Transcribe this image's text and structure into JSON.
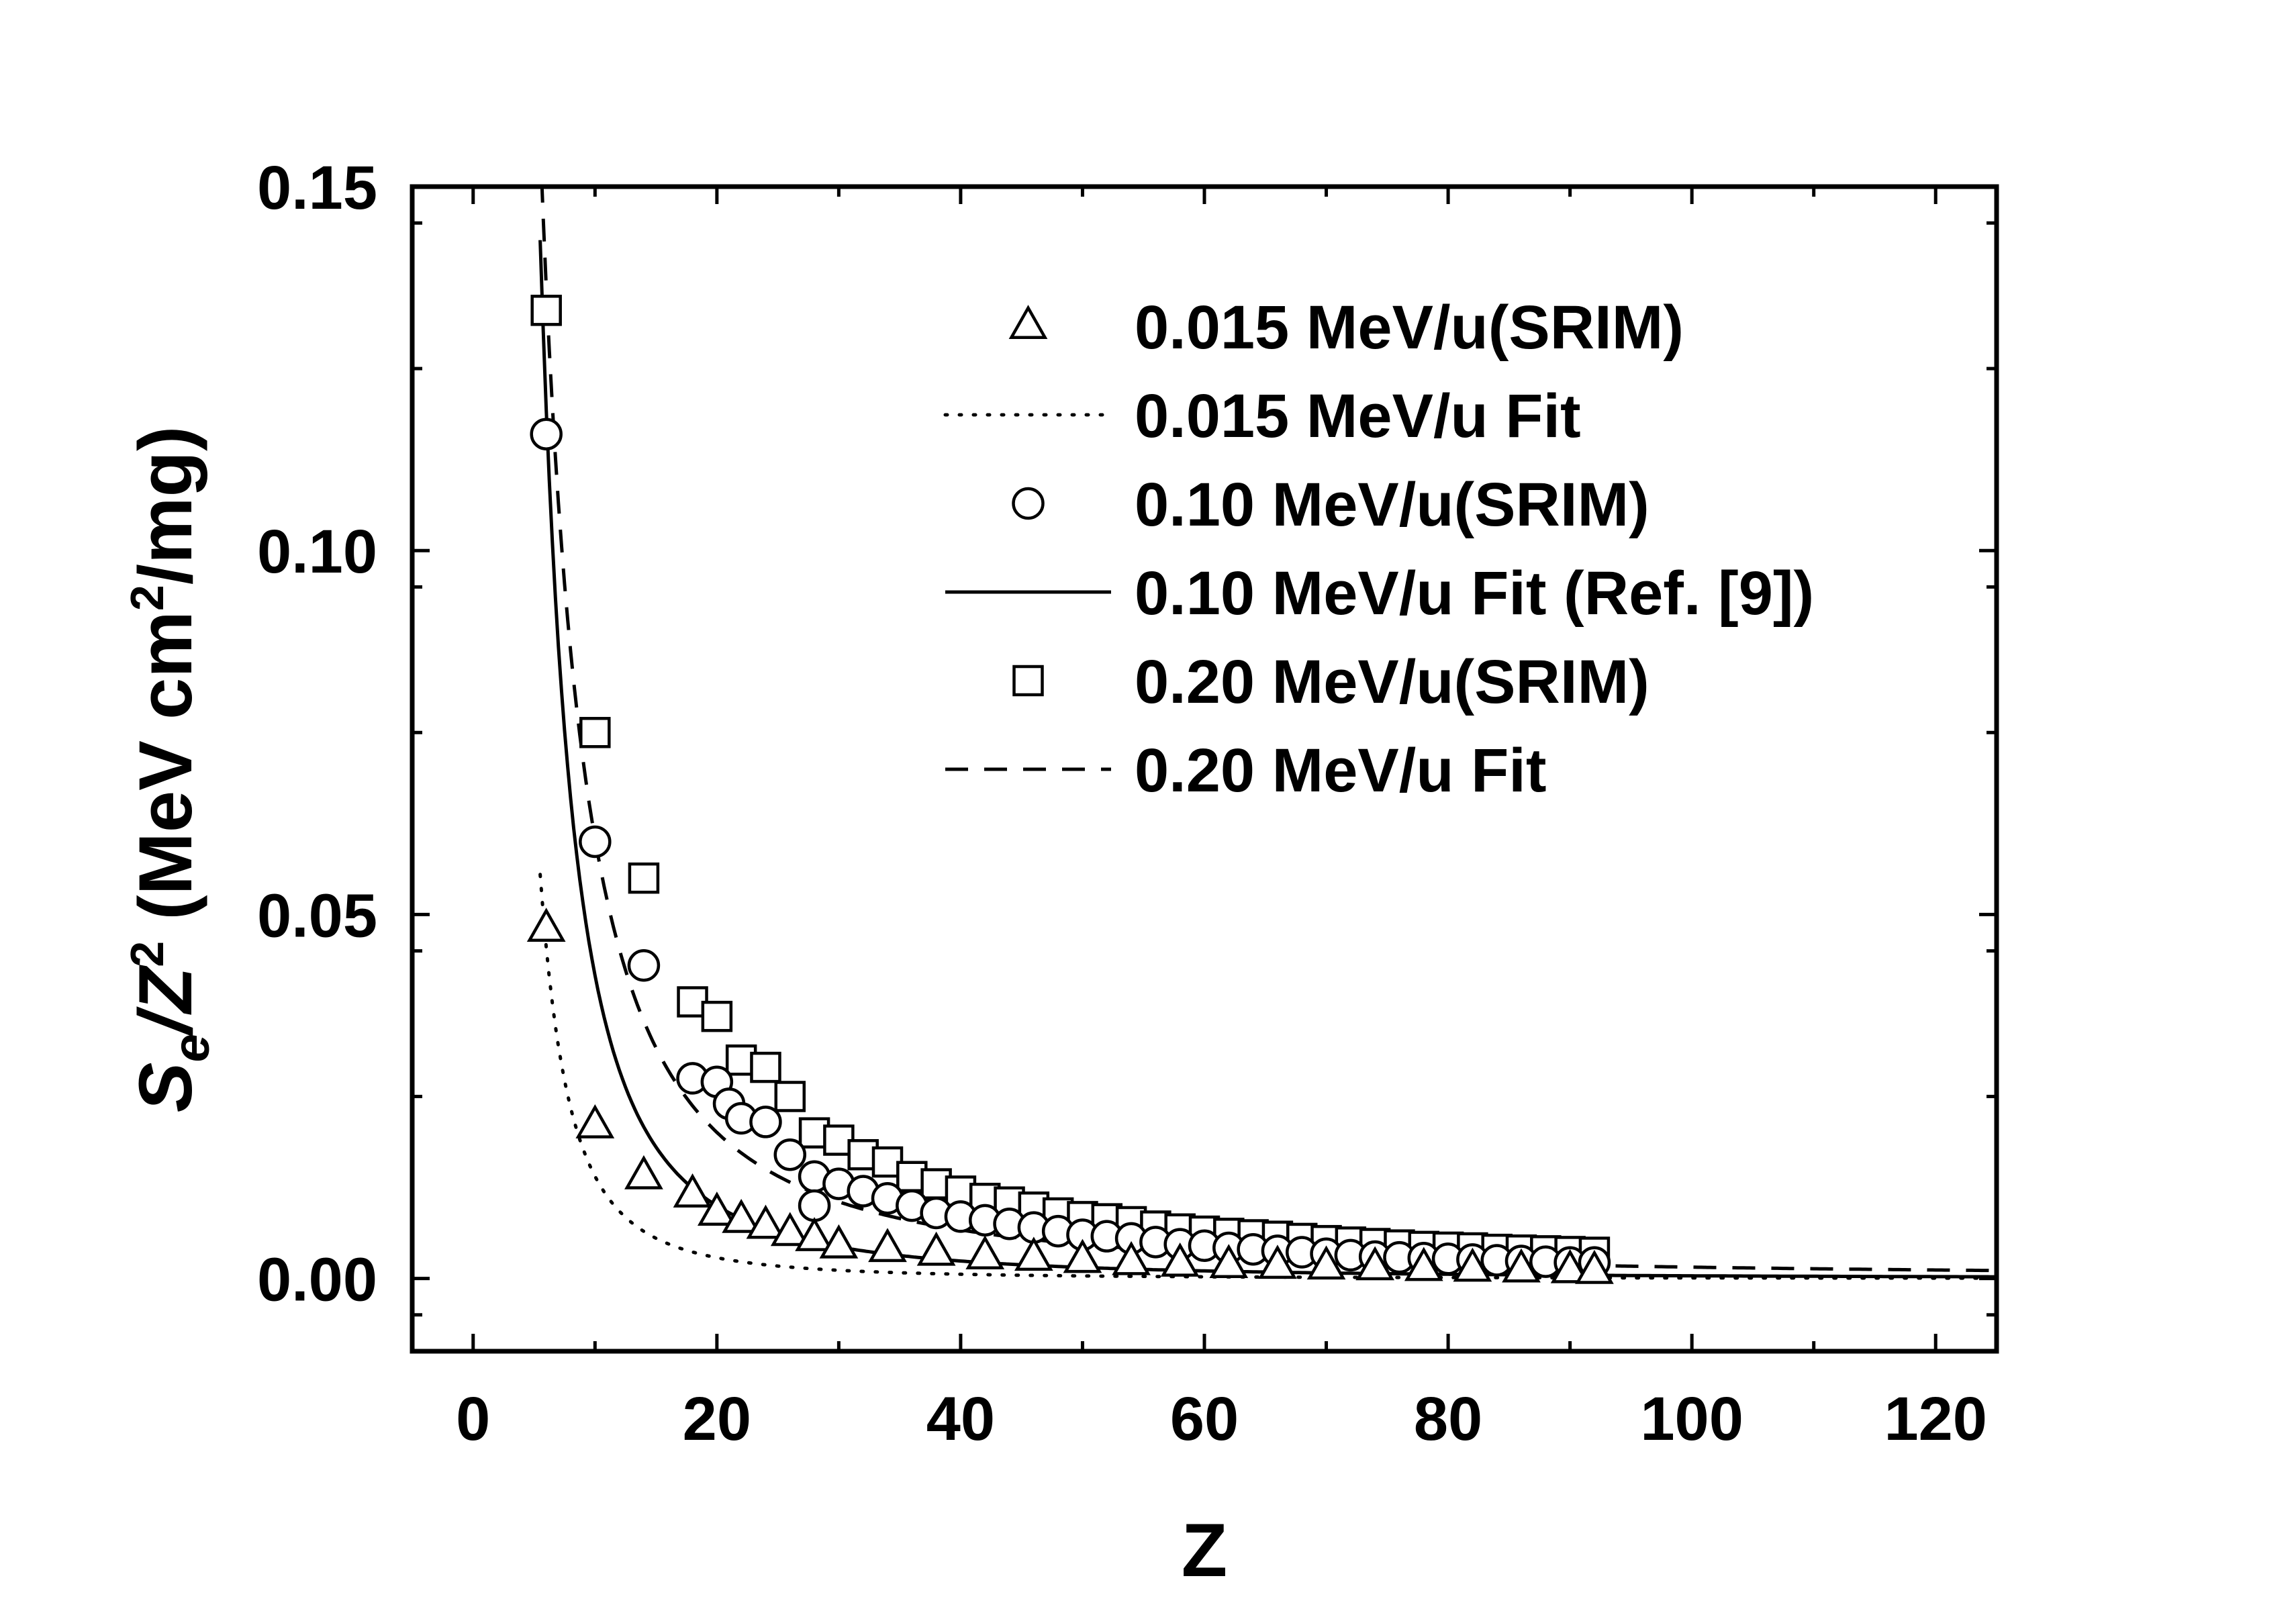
{
  "chart_data": {
    "type": "scatter",
    "title": "",
    "xlabel": "Z",
    "ylabel": {
      "main": "S",
      "subscript": "e",
      "slash_z": "/Z",
      "sup1": "2",
      "units_open": " (MeV cm",
      "sup2": "2",
      "units_close": "/mg)"
    },
    "xlim": [
      -5,
      125
    ],
    "ylim": [
      -0.01,
      0.15
    ],
    "x_ticks": [
      0,
      20,
      40,
      60,
      80,
      100,
      120
    ],
    "x_tick_labels": [
      "0",
      "20",
      "40",
      "60",
      "80",
      "100",
      "120"
    ],
    "y_ticks": [
      0.0,
      0.05,
      0.1,
      0.15
    ],
    "y_tick_labels": [
      "0.00",
      "0.05",
      "0.10",
      "0.15"
    ],
    "grid": false,
    "legend_position": "top-right",
    "series": [
      {
        "name": "0.015 MeV/u(SRIM)",
        "kind": "markers",
        "marker": "triangle",
        "x": [
          6,
          10,
          14,
          18,
          20,
          22,
          24,
          26,
          28,
          30,
          34,
          38,
          42,
          46,
          50,
          54,
          58,
          62,
          66,
          70,
          74,
          78,
          82,
          86,
          90,
          92
        ],
        "y": [
          0.048,
          0.021,
          0.014,
          0.0115,
          0.009,
          0.008,
          0.0072,
          0.0062,
          0.0055,
          0.0045,
          0.004,
          0.0035,
          0.003,
          0.0028,
          0.0025,
          0.0022,
          0.002,
          0.0018,
          0.0017,
          0.0016,
          0.0015,
          0.0014,
          0.0013,
          0.0012,
          0.0011,
          0.001
        ]
      },
      {
        "name": "0.015 MeV/u Fit",
        "kind": "line",
        "style": "dotted",
        "fit": {
          "a": 2.8,
          "b": -2.3
        },
        "x_range": [
          5.5,
          125
        ]
      },
      {
        "name": "0.10 MeV/u(SRIM)",
        "kind": "markers",
        "marker": "circle",
        "x": [
          6,
          10,
          14,
          18,
          20,
          21,
          22,
          24,
          26,
          28,
          28,
          30,
          32,
          34,
          36,
          38,
          40,
          42,
          44,
          46,
          48,
          50,
          52,
          54,
          56,
          58,
          60,
          62,
          64,
          66,
          68,
          70,
          72,
          74,
          76,
          78,
          80,
          82,
          84,
          86,
          88,
          90,
          92
        ],
        "y": [
          0.116,
          0.06,
          0.043,
          0.0275,
          0.027,
          0.024,
          0.022,
          0.0215,
          0.017,
          0.014,
          0.01,
          0.013,
          0.012,
          0.011,
          0.01,
          0.009,
          0.0085,
          0.008,
          0.0075,
          0.007,
          0.0065,
          0.006,
          0.0058,
          0.0055,
          0.005,
          0.0047,
          0.0045,
          0.0042,
          0.004,
          0.0038,
          0.0036,
          0.0034,
          0.0032,
          0.003,
          0.0029,
          0.0028,
          0.0027,
          0.0026,
          0.0025,
          0.0024,
          0.0023,
          0.0022,
          0.0022
        ]
      },
      {
        "name": "0.10 MeV/u Fit (Ref. [9])",
        "kind": "line",
        "style": "solid",
        "fit": {
          "a": 4.78,
          "b": -2.06
        },
        "x_range": [
          5.5,
          125
        ]
      },
      {
        "name": "0.20 MeV/u(SRIM)",
        "kind": "markers",
        "marker": "square",
        "x": [
          6,
          10,
          14,
          18,
          20,
          22,
          24,
          26,
          28,
          30,
          32,
          34,
          36,
          38,
          40,
          42,
          44,
          46,
          48,
          50,
          52,
          54,
          56,
          58,
          60,
          62,
          64,
          66,
          68,
          70,
          72,
          74,
          76,
          78,
          80,
          82,
          84,
          86,
          88,
          90,
          92
        ],
        "y": [
          0.133,
          0.075,
          0.055,
          0.038,
          0.036,
          0.03,
          0.029,
          0.025,
          0.02,
          0.019,
          0.017,
          0.016,
          0.014,
          0.013,
          0.012,
          0.011,
          0.0105,
          0.0098,
          0.009,
          0.0085,
          0.0082,
          0.0078,
          0.0072,
          0.0068,
          0.0065,
          0.0062,
          0.006,
          0.0058,
          0.0055,
          0.0052,
          0.005,
          0.0048,
          0.0046,
          0.0044,
          0.0043,
          0.0042,
          0.004,
          0.0039,
          0.0038,
          0.0037,
          0.0036
        ]
      },
      {
        "name": "0.20 MeV/u Fit",
        "kind": "line",
        "style": "dashed",
        "fit": {
          "a": 2.35,
          "b": -1.59
        },
        "x_range": [
          5.5,
          125
        ]
      }
    ]
  }
}
